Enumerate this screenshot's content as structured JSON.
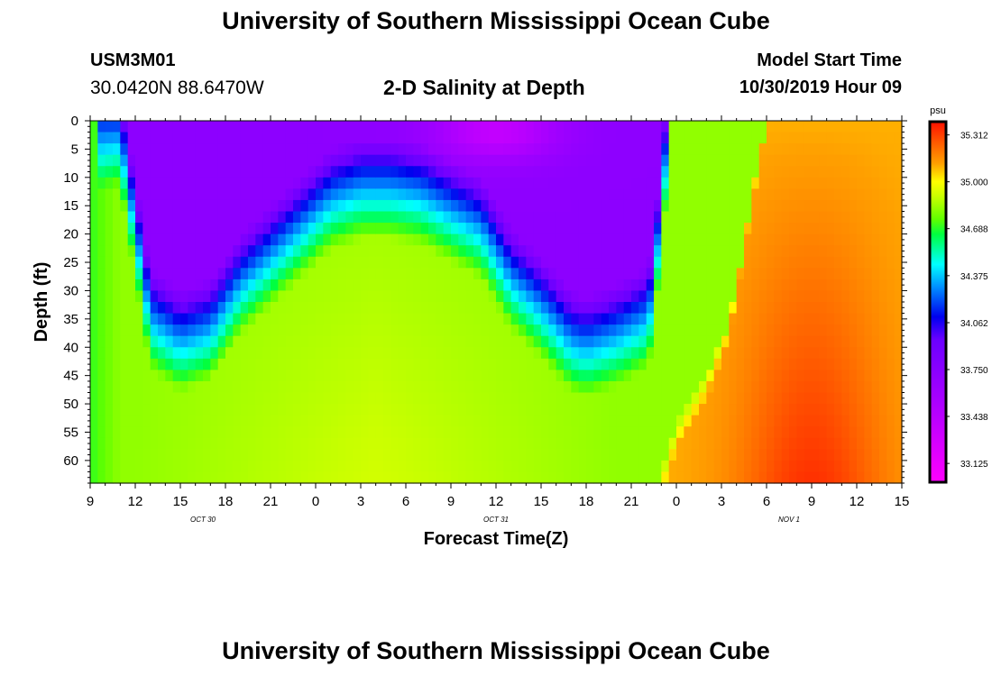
{
  "header": {
    "title": "University of Southern Mississippi Ocean Cube",
    "station_id": "USM3M01",
    "station_coords": "30.0420N 88.6470W",
    "plot_title": "2-D Salinity at Depth",
    "start_label": "Model Start Time",
    "start_value": "10/30/2019 Hour 09"
  },
  "footer": {
    "title": "University of Southern Mississippi Ocean Cube"
  },
  "chart_data": {
    "type": "heatmap",
    "title": "2-D Salinity at Depth",
    "xlabel": "Forecast Time(Z)",
    "ylabel": "Depth (ft)",
    "x_tick_labels": [
      "9",
      "12",
      "15",
      "18",
      "21",
      "0",
      "3",
      "6",
      "9",
      "12",
      "15",
      "18",
      "21",
      "0",
      "3",
      "6",
      "9",
      "12",
      "15"
    ],
    "x_tick_hours": [
      0,
      3,
      6,
      9,
      12,
      15,
      18,
      21,
      24,
      27,
      30,
      33,
      36,
      39,
      42,
      45,
      48,
      51,
      54
    ],
    "xlim_hours": [
      0,
      54
    ],
    "date_labels": [
      {
        "text": "OCT 30",
        "hour": 7.5
      },
      {
        "text": "OCT 31",
        "hour": 27
      },
      {
        "text": "NOV 1",
        "hour": 46.5
      }
    ],
    "y_ticks": [
      0,
      5,
      10,
      15,
      20,
      25,
      30,
      35,
      40,
      45,
      50,
      55,
      60
    ],
    "ylim": [
      0,
      64
    ],
    "colorbar": {
      "unit": "psu",
      "ticks": [
        "35.312",
        "35.000",
        "34.688",
        "34.375",
        "34.062",
        "33.750",
        "33.438",
        "33.125"
      ],
      "range": [
        33.0,
        35.4
      ],
      "stops": [
        {
          "v": 33.0,
          "c": "#ff00ff"
        },
        {
          "v": 33.6,
          "c": "#a000ff"
        },
        {
          "v": 33.95,
          "c": "#6a00ff"
        },
        {
          "v": 34.1,
          "c": "#0000ee"
        },
        {
          "v": 34.3,
          "c": "#0090ff"
        },
        {
          "v": 34.45,
          "c": "#00ffff"
        },
        {
          "v": 34.65,
          "c": "#00ff40"
        },
        {
          "v": 34.75,
          "c": "#60ff00"
        },
        {
          "v": 34.9,
          "c": "#c8ff00"
        },
        {
          "v": 35.0,
          "c": "#ffff00"
        },
        {
          "v": 35.12,
          "c": "#ffa000"
        },
        {
          "v": 35.25,
          "c": "#ff6000"
        },
        {
          "v": 35.4,
          "c": "#ff1000"
        }
      ]
    },
    "features": {
      "low_boundary_hours": [
        0.5,
        2.0,
        4.0,
        6.0,
        8.0,
        10.0,
        12.0,
        14.0,
        16.0,
        18.0,
        20.0,
        22.0,
        24.0,
        26.0,
        28.0,
        30.0,
        32.0,
        33.0,
        35.0,
        37.0,
        37.5,
        38.0,
        38.5
      ],
      "low_boundary_depths": [
        0,
        0,
        32,
        36,
        34,
        26,
        21,
        16,
        11,
        9,
        9,
        10,
        13,
        16,
        25,
        30,
        36,
        37,
        35,
        32,
        28,
        10,
        0
      ],
      "surface_fresh_center": {
        "hour": 27,
        "depth": 2,
        "value": 33.15
      },
      "high_boundary_hours": [
        37.5,
        39.0,
        41.0,
        42.5,
        45.0,
        50.0,
        54.0
      ],
      "high_boundary_depths": [
        64,
        52,
        45,
        36,
        0,
        0,
        0
      ],
      "bottom_max": {
        "hour": 48,
        "depth": 64,
        "value": 35.33
      }
    }
  }
}
